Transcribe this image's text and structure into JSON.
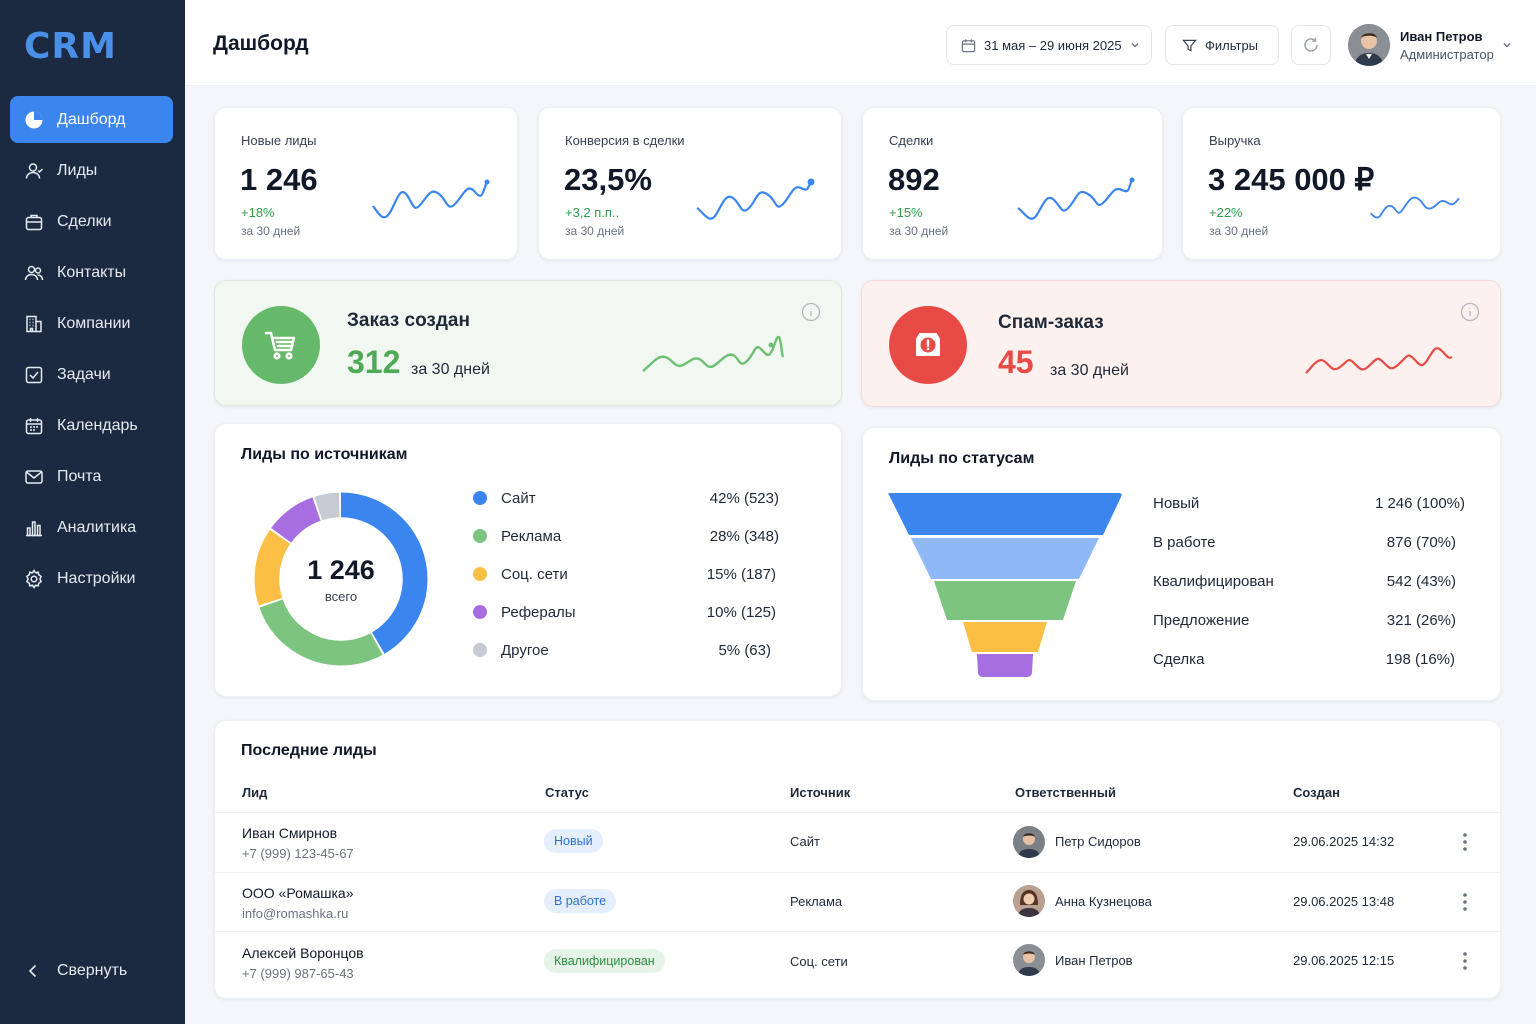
{
  "app": {
    "logo": "CRM"
  },
  "sidebar": {
    "items": [
      {
        "label": "Дашборд",
        "icon": "pie-chart-icon",
        "active": true
      },
      {
        "label": "Лиды",
        "icon": "user-icon"
      },
      {
        "label": "Сделки",
        "icon": "briefcase-icon"
      },
      {
        "label": "Контакты",
        "icon": "users-icon"
      },
      {
        "label": "Компании",
        "icon": "building-icon"
      },
      {
        "label": "Задачи",
        "icon": "checkbox-icon"
      },
      {
        "label": "Календарь",
        "icon": "calendar-icon"
      },
      {
        "label": "Почта",
        "icon": "mail-icon"
      },
      {
        "label": "Аналитика",
        "icon": "bar-chart-icon"
      },
      {
        "label": "Настройки",
        "icon": "gear-icon"
      }
    ],
    "collapse_label": "Свернуть"
  },
  "header": {
    "title": "Дашборд",
    "date_range": "31 мая – 29 июня 2025",
    "filters_label": "Фильтры",
    "user": {
      "name": "Иван Петров",
      "role": "Администратор"
    }
  },
  "kpis": [
    {
      "title": "Новые лиды",
      "value": "1 246",
      "delta": "+18%",
      "period": "за 30 дней"
    },
    {
      "title": "Конверсия в сделки",
      "value": "23,5%",
      "delta": "+3,2 п.п..",
      "period": "за 30 дней"
    },
    {
      "title": "Сделки",
      "value": "892",
      "delta": "+15%",
      "period": "за 30 дней"
    },
    {
      "title": "Выручка",
      "value": "3 245 000 ₽",
      "delta": "+22%",
      "period": "за 30 дней"
    }
  ],
  "events": [
    {
      "title": "Заказ создан",
      "value": "312",
      "period": "за 30 дней",
      "color": "#66b96a",
      "icon": "cart-icon"
    },
    {
      "title": "Спам-заказ",
      "value": "45",
      "period": "за 30 дней",
      "color": "#e84b45",
      "icon": "alert-icon"
    }
  ],
  "sources": {
    "title": "Лиды по источникам",
    "total": "1 246",
    "total_label": "всего",
    "items": [
      {
        "label": "Сайт",
        "value": "42% (523)",
        "share": 42,
        "color": "#3b86ee"
      },
      {
        "label": "Реклама",
        "value": "28% (348)",
        "share": 28,
        "color": "#7cc47f"
      },
      {
        "label": "Соц. сети",
        "value": "15% (187)",
        "share": 15,
        "color": "#fbbf45"
      },
      {
        "label": "Рефералы",
        "value": "10% (125)",
        "share": 10,
        "color": "#a66ee0"
      },
      {
        "label": "Другое",
        "value": "5% (63)",
        "share": 5,
        "color": "#c5cad3"
      }
    ]
  },
  "statuses": {
    "title": "Лиды по статусам",
    "items": [
      {
        "label": "Новый",
        "value": "1 246 (100%)",
        "color": "#3b86ee"
      },
      {
        "label": "В работе",
        "value": "876 (70%)",
        "color": "#8fb8f7"
      },
      {
        "label": "Квалифицирован",
        "value": "542 (43%)",
        "color": "#7cc47f"
      },
      {
        "label": "Предложение",
        "value": "321 (26%)",
        "color": "#fbbf45"
      },
      {
        "label": "Сделка",
        "value": "198 (16%)",
        "color": "#a66ee0"
      }
    ]
  },
  "leads_table": {
    "title": "Последние лиды",
    "columns": [
      "Лид",
      "Статус",
      "Источник",
      "Ответственный",
      "Создан"
    ],
    "rows": [
      {
        "name": "Иван Смирнов",
        "contact": "+7 (999) 123-45-67",
        "status": "Новый",
        "source": "Сайт",
        "owner": "Петр Сидоров",
        "created": "29.06.2025 14:32"
      },
      {
        "name": "ООО «Ромашка»",
        "contact": "info@romashka.ru",
        "status": "В работе",
        "source": "Реклама",
        "owner": "Анна Кузнецова",
        "created": "29.06.2025 13:48"
      },
      {
        "name": "Алексей Воронцов",
        "contact": "+7 (999) 987-65-43",
        "status": "Квалифицирован",
        "source": "Соц. сети",
        "owner": "Иван Петров",
        "created": "29.06.2025 12:15"
      }
    ]
  }
}
